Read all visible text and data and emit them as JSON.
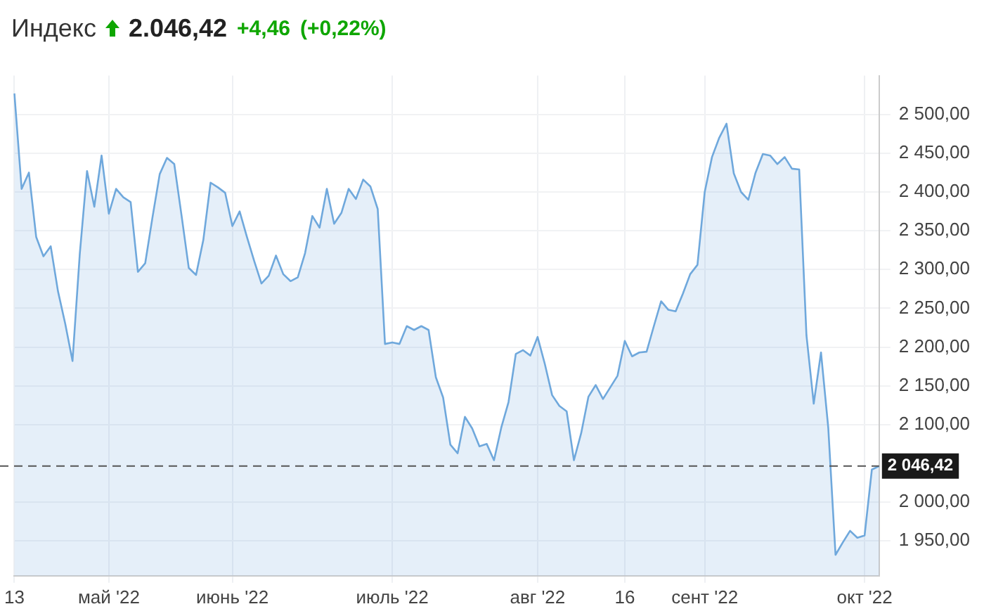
{
  "chart_data": {
    "type": "area",
    "title": "Индекс",
    "annotations": [
      "2.046,42",
      "+4,46",
      "(+0,22%)"
    ],
    "categories": [
      "13",
      null,
      null,
      null,
      null,
      null,
      null,
      null,
      null,
      null,
      null,
      null,
      null,
      "май '22",
      null,
      null,
      null,
      null,
      null,
      null,
      null,
      null,
      null,
      null,
      null,
      null,
      null,
      null,
      null,
      null,
      "июнь '22",
      null,
      null,
      null,
      null,
      null,
      null,
      null,
      null,
      null,
      null,
      null,
      null,
      null,
      null,
      null,
      null,
      null,
      null,
      null,
      null,
      null,
      "июль '22",
      null,
      null,
      null,
      null,
      null,
      null,
      null,
      null,
      null,
      null,
      null,
      null,
      null,
      null,
      null,
      null,
      null,
      null,
      null,
      "авг '22",
      null,
      null,
      null,
      null,
      null,
      null,
      null,
      null,
      null,
      null,
      null,
      "16",
      null,
      null,
      null,
      null,
      null,
      null,
      null,
      null,
      null,
      null,
      "сент '22",
      null,
      null,
      null,
      null,
      null,
      null,
      null,
      null,
      null,
      null,
      null,
      null,
      null,
      null,
      null,
      null,
      null,
      null,
      null,
      null,
      null,
      "окт '22",
      null,
      null
    ],
    "series": [
      {
        "color": "#6fa8dc",
        "values": [
          2527,
          2404,
          2425,
          2342,
          2317,
          2330,
          2272,
          2230,
          2182,
          2320,
          2427,
          2381,
          2447,
          2372,
          2404,
          2393,
          2387,
          2297,
          2308,
          2367,
          2423,
          2444,
          2436,
          2370,
          2302,
          2293,
          2338,
          2412,
          2406,
          2399,
          2356,
          2375,
          2342,
          2311,
          2282,
          2292,
          2318,
          2294,
          2285,
          2290,
          2321,
          2369,
          2354,
          2404,
          2359,
          2373,
          2404,
          2391,
          2416,
          2407,
          2378,
          2204,
          2206,
          2204,
          2227,
          2222,
          2227,
          2222,
          2161,
          2135,
          2074,
          2063,
          2110,
          2095,
          2072,
          2075,
          2054,
          2096,
          2129,
          2191,
          2196,
          2189,
          2213,
          2178,
          2138,
          2124,
          2117,
          2054,
          2089,
          2136,
          2151,
          2133,
          2148,
          2163,
          2208,
          2188,
          2193,
          2194,
          2227,
          2259,
          2248,
          2246,
          2269,
          2294,
          2306,
          2400,
          2445,
          2470,
          2488,
          2424,
          2400,
          2390,
          2425,
          2449,
          2447,
          2436,
          2445,
          2430,
          2429,
          2215,
          2127,
          2193,
          2096,
          1932,
          1948,
          1963,
          1954,
          1957,
          2042,
          2046.42
        ]
      }
    ],
    "ylim": [
      1905,
      2550
    ],
    "yticks": [
      {
        "value": 1950,
        "label": "1 950,00"
      },
      {
        "value": 2000,
        "label": "2 000,00"
      },
      {
        "value": 2100,
        "label": "2 100,00"
      },
      {
        "value": 2150,
        "label": "2 150,00"
      },
      {
        "value": 2200,
        "label": "2 200,00"
      },
      {
        "value": 2250,
        "label": "2 250,00"
      },
      {
        "value": 2300,
        "label": "2 300,00"
      },
      {
        "value": 2350,
        "label": "2 350,00"
      },
      {
        "value": 2400,
        "label": "2 400,00"
      },
      {
        "value": 2450,
        "label": "2 450,00"
      },
      {
        "value": 2500,
        "label": "2 500,00"
      }
    ],
    "ref_lines": [
      {
        "axis": "y",
        "value": 2046.42,
        "label": "2 046,42",
        "line_style": "dashed",
        "color": "#555555"
      }
    ],
    "grid": true,
    "legend": false,
    "marker": "none",
    "line_style": "solid"
  }
}
